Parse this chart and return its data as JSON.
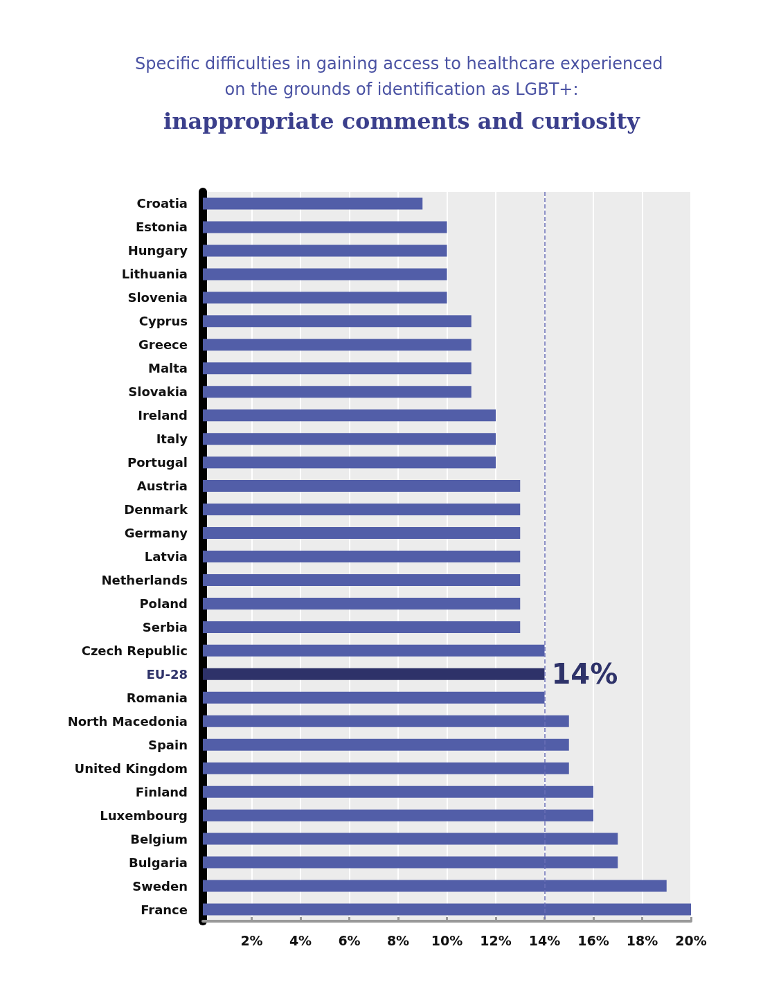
{
  "chart_data": {
    "type": "bar",
    "orientation": "horizontal",
    "title": "Specific difficulties in gaining access to healthcare experienced on the grounds of identification as LGBT+:",
    "subtitle": "inappropriate comments and curiosity",
    "categories": [
      "Croatia",
      "Estonia",
      "Hungary",
      "Lithuania",
      "Slovenia",
      "Cyprus",
      "Greece",
      "Malta",
      "Slovakia",
      "Ireland",
      "Italy",
      "Portugal",
      "Austria",
      "Denmark",
      "Germany",
      "Latvia",
      "Netherlands",
      "Poland",
      "Serbia",
      "Czech Republic",
      "EU-28",
      "Romania",
      "North Macedonia",
      "Spain",
      "United Kingdom",
      "Finland",
      "Luxembourg",
      "Belgium",
      "Bulgaria",
      "Sweden",
      "France"
    ],
    "values": [
      9,
      10,
      10,
      10,
      10,
      11,
      11,
      11,
      11,
      12,
      12,
      12,
      13,
      13,
      13,
      13,
      13,
      13,
      13,
      14,
      14,
      14,
      15,
      15,
      15,
      16,
      16,
      17,
      17,
      19,
      20
    ],
    "colors": [
      "#525ea8",
      "#525ea8",
      "#525ea8",
      "#525ea8",
      "#525ea8",
      "#525ea8",
      "#525ea8",
      "#525ea8",
      "#525ea8",
      "#525ea8",
      "#525ea8",
      "#525ea8",
      "#525ea8",
      "#525ea8",
      "#525ea8",
      "#525ea8",
      "#525ea8",
      "#525ea8",
      "#525ea8",
      "#525ea8",
      "#2e3269",
      "#525ea8",
      "#525ea8",
      "#525ea8",
      "#525ea8",
      "#525ea8",
      "#525ea8",
      "#525ea8",
      "#525ea8",
      "#525ea8",
      "#525ea8"
    ],
    "value_labels": [
      null,
      null,
      null,
      null,
      null,
      null,
      null,
      null,
      null,
      null,
      null,
      null,
      null,
      null,
      null,
      null,
      null,
      null,
      null,
      null,
      "14%",
      null,
      null,
      null,
      null,
      null,
      null,
      null,
      null,
      null,
      null
    ],
    "xlim": [
      0,
      20
    ],
    "xticks": [
      {
        "value": 2,
        "label": "2%"
      },
      {
        "value": 4,
        "label": "4%"
      },
      {
        "value": 6,
        "label": "6%"
      },
      {
        "value": 8,
        "label": "8%"
      },
      {
        "value": 10,
        "label": "10%"
      },
      {
        "value": 12,
        "label": "12%"
      },
      {
        "value": 14,
        "label": "14%"
      },
      {
        "value": 16,
        "label": "16%"
      },
      {
        "value": 18,
        "label": "18%"
      },
      {
        "value": 20,
        "label": "20%"
      }
    ],
    "ref_lines": [
      {
        "axis": "x",
        "value": 14,
        "color": "#6a6fb5",
        "line_style": "dashed"
      }
    ],
    "grid": "x"
  }
}
